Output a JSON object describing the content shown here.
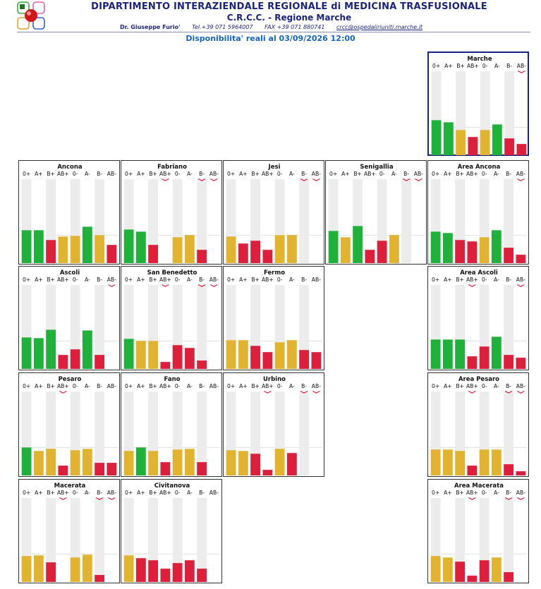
{
  "header": {
    "title": "DIPARTIMENTO INTERAZIENDALE REGIONALE di MEDICINA TRASFUSIONALE",
    "subtitle": "C.R.C.C. - Regione Marche",
    "director": "Dr. Giuseppe Furio'",
    "tel": "Tel.+39 071 5964007",
    "fax": "FAX +39 071 880741",
    "email": "crcc@ospedaliriuniti.marche.it",
    "availability": "Disponibilita' reali al 03/09/2026 12:00"
  },
  "colors": {
    "green": "#1fb23a",
    "yellow": "#e2b32e",
    "red": "#dd1f3c",
    "track": "#ececec",
    "arrow": "#dd1f3c"
  },
  "chart_data": [
    {
      "type": "bar",
      "title": "Marche",
      "categories": [
        "0+",
        "A+",
        "B+",
        "AB+",
        "0-",
        "A-",
        "B-",
        "AB-"
      ],
      "values": [
        50,
        47,
        36,
        26,
        36,
        44,
        24,
        16
      ],
      "status": [
        "green",
        "green",
        "yellow",
        "red",
        "yellow",
        "green",
        "red",
        "red"
      ],
      "down": [
        "AB-"
      ],
      "ylim": [
        0,
        120
      ]
    },
    {
      "type": "bar",
      "title": "Ancona",
      "categories": [
        "0+",
        "A+",
        "B+",
        "AB+",
        "0-",
        "A-",
        "B-",
        "AB-"
      ],
      "values": [
        47,
        47,
        33,
        38,
        39,
        52,
        40,
        26
      ],
      "status": [
        "green",
        "green",
        "red",
        "yellow",
        "yellow",
        "green",
        "yellow",
        "red"
      ],
      "down": [],
      "ylim": [
        0,
        120
      ]
    },
    {
      "type": "bar",
      "title": "Fabriano",
      "categories": [
        "0+",
        "A+",
        "B+",
        "AB+",
        "0-",
        "A-",
        "B-",
        "AB-"
      ],
      "values": [
        48,
        45,
        26,
        0,
        37,
        40,
        19,
        0
      ],
      "status": [
        "green",
        "green",
        "red",
        "red",
        "yellow",
        "yellow",
        "red",
        "red"
      ],
      "down": [
        "AB+",
        "B-",
        "AB-"
      ],
      "ylim": [
        0,
        120
      ]
    },
    {
      "type": "bar",
      "title": "Jesi",
      "categories": [
        "0+",
        "A+",
        "B+",
        "AB+",
        "0-",
        "A-",
        "B-",
        "AB-"
      ],
      "values": [
        38,
        28,
        32,
        19,
        40,
        40,
        0,
        0
      ],
      "status": [
        "yellow",
        "red",
        "red",
        "red",
        "yellow",
        "yellow",
        "red",
        "red"
      ],
      "down": [
        "B-",
        "AB-"
      ],
      "ylim": [
        0,
        120
      ]
    },
    {
      "type": "bar",
      "title": "Senigallia",
      "categories": [
        "0+",
        "A+",
        "B+",
        "AB+",
        "0-",
        "A-",
        "B-",
        "AB-"
      ],
      "values": [
        46,
        37,
        53,
        19,
        32,
        40,
        0,
        0
      ],
      "status": [
        "green",
        "yellow",
        "green",
        "red",
        "red",
        "yellow",
        "red",
        "red"
      ],
      "down": [
        "B-",
        "AB-"
      ],
      "ylim": [
        0,
        120
      ]
    },
    {
      "type": "bar",
      "title": "Area Ancona",
      "categories": [
        "0+",
        "A+",
        "B+",
        "AB+",
        "0-",
        "A-",
        "B-",
        "AB-"
      ],
      "values": [
        45,
        43,
        33,
        31,
        37,
        47,
        22,
        12
      ],
      "status": [
        "green",
        "green",
        "red",
        "red",
        "yellow",
        "green",
        "red",
        "red"
      ],
      "down": [
        "AB-"
      ],
      "ylim": [
        0,
        120
      ]
    },
    {
      "type": "bar",
      "title": "Ascoli",
      "categories": [
        "0+",
        "A+",
        "B+",
        "AB+",
        "0-",
        "A-",
        "B-",
        "AB-"
      ],
      "values": [
        45,
        44,
        56,
        20,
        28,
        55,
        20,
        0
      ],
      "status": [
        "green",
        "green",
        "green",
        "red",
        "red",
        "green",
        "red",
        "red"
      ],
      "down": [
        "AB-"
      ],
      "ylim": [
        0,
        120
      ]
    },
    {
      "type": "bar",
      "title": "San Benedetto",
      "categories": [
        "0+",
        "A+",
        "B+",
        "AB+",
        "0-",
        "A-",
        "B-",
        "AB-"
      ],
      "values": [
        43,
        40,
        40,
        10,
        34,
        30,
        12,
        0
      ],
      "status": [
        "green",
        "yellow",
        "yellow",
        "red",
        "red",
        "red",
        "red",
        "red"
      ],
      "down": [
        "AB+",
        "B-",
        "AB-"
      ],
      "ylim": [
        0,
        120
      ]
    },
    {
      "type": "bar",
      "title": "Fermo",
      "categories": [
        "0+",
        "A+",
        "B+",
        "AB+",
        "0-",
        "A-",
        "B-",
        "AB-"
      ],
      "values": [
        41,
        41,
        33,
        24,
        38,
        41,
        27,
        24
      ],
      "status": [
        "yellow",
        "yellow",
        "red",
        "red",
        "yellow",
        "yellow",
        "red",
        "red"
      ],
      "down": [],
      "ylim": [
        0,
        120
      ]
    },
    {
      "type": "bar",
      "title": "Area Ascoli",
      "categories": [
        "0+",
        "A+",
        "B+",
        "AB+",
        "0-",
        "A-",
        "B-",
        "AB-"
      ],
      "values": [
        42,
        42,
        42,
        18,
        32,
        46,
        20,
        16
      ],
      "status": [
        "green",
        "green",
        "green",
        "red",
        "red",
        "green",
        "red",
        "red"
      ],
      "down": [
        "AB+",
        "AB-"
      ],
      "ylim": [
        0,
        120
      ]
    },
    {
      "type": "bar",
      "title": "Pesaro",
      "categories": [
        "0+",
        "A+",
        "B+",
        "AB+",
        "0-",
        "A-",
        "B-",
        "AB-"
      ],
      "values": [
        40,
        35,
        38,
        14,
        36,
        38,
        18,
        18
      ],
      "status": [
        "green",
        "yellow",
        "yellow",
        "red",
        "yellow",
        "yellow",
        "red",
        "red"
      ],
      "down": [
        "AB+"
      ],
      "ylim": [
        0,
        120
      ]
    },
    {
      "type": "bar",
      "title": "Fano",
      "categories": [
        "0+",
        "A+",
        "B+",
        "AB+",
        "0-",
        "A-",
        "B-",
        "AB-"
      ],
      "values": [
        35,
        40,
        35,
        19,
        37,
        38,
        19,
        0
      ],
      "status": [
        "yellow",
        "green",
        "yellow",
        "red",
        "yellow",
        "yellow",
        "red",
        "red"
      ],
      "down": [],
      "ylim": [
        0,
        120
      ]
    },
    {
      "type": "bar",
      "title": "Urbino",
      "categories": [
        "0+",
        "A+",
        "B+",
        "AB+",
        "0-",
        "A-",
        "B-",
        "AB-"
      ],
      "values": [
        36,
        35,
        31,
        8,
        38,
        32,
        0,
        0
      ],
      "status": [
        "yellow",
        "yellow",
        "red",
        "red",
        "yellow",
        "red",
        "red",
        "red"
      ],
      "down": [
        "AB+",
        "B-",
        "AB-"
      ],
      "ylim": [
        0,
        120
      ]
    },
    {
      "type": "bar",
      "title": "Area Pesaro",
      "categories": [
        "0+",
        "A+",
        "B+",
        "AB+",
        "0-",
        "A-",
        "B-",
        "AB-"
      ],
      "values": [
        37,
        37,
        35,
        14,
        37,
        37,
        16,
        6
      ],
      "status": [
        "yellow",
        "yellow",
        "yellow",
        "red",
        "yellow",
        "yellow",
        "red",
        "red"
      ],
      "down": [
        "AB+",
        "B-",
        "AB-"
      ],
      "ylim": [
        0,
        120
      ]
    },
    {
      "type": "bar",
      "title": "Macerata",
      "categories": [
        "0+",
        "A+",
        "B+",
        "AB+",
        "0-",
        "A-",
        "B-",
        "AB-"
      ],
      "values": [
        37,
        38,
        28,
        0,
        35,
        39,
        10,
        0
      ],
      "status": [
        "yellow",
        "yellow",
        "red",
        "red",
        "yellow",
        "yellow",
        "red",
        "red"
      ],
      "down": [
        "AB+",
        "B-",
        "AB-"
      ],
      "ylim": [
        0,
        120
      ]
    },
    {
      "type": "bar",
      "title": "Civitanova",
      "categories": [
        "0+",
        "A+",
        "B+",
        "AB+",
        "0-",
        "A-",
        "B-",
        "AB-"
      ],
      "values": [
        38,
        34,
        31,
        19,
        27,
        31,
        19,
        0
      ],
      "status": [
        "yellow",
        "red",
        "red",
        "red",
        "red",
        "red",
        "red",
        "red"
      ],
      "down": [],
      "ylim": [
        0,
        120
      ]
    },
    {
      "type": "bar",
      "title": "Area Macerata",
      "categories": [
        "0+",
        "A+",
        "B+",
        "AB+",
        "0-",
        "A-",
        "B-",
        "AB-"
      ],
      "values": [
        37,
        35,
        29,
        9,
        31,
        35,
        14,
        0
      ],
      "status": [
        "yellow",
        "yellow",
        "red",
        "red",
        "red",
        "yellow",
        "red",
        "red"
      ],
      "down": [
        "AB+",
        "B-",
        "AB-"
      ],
      "ylim": [
        0,
        120
      ]
    }
  ]
}
